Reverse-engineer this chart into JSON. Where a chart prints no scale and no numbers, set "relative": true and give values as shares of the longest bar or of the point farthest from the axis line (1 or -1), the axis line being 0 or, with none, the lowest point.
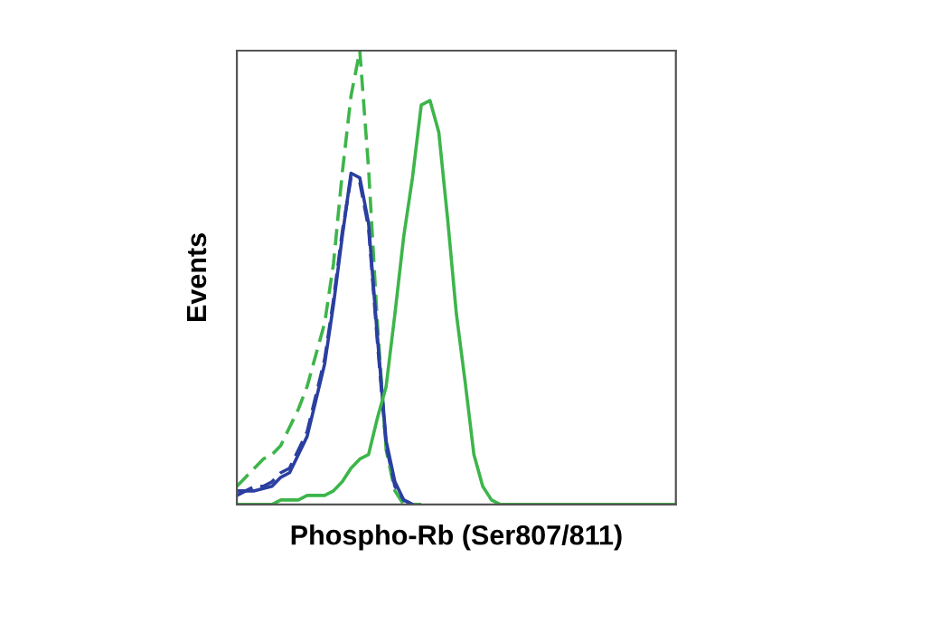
{
  "chart_data": {
    "type": "line",
    "relative": true,
    "xlabel": "Phospho-Rb (Ser807/811)",
    "ylabel": "Events",
    "tick_labels": false,
    "marker": "none",
    "categories": [
      null,
      null,
      null,
      null,
      null,
      null,
      null,
      null,
      null,
      null,
      null,
      null,
      null,
      null,
      null,
      null,
      null,
      null,
      null,
      null,
      null,
      null,
      null,
      null,
      null,
      null,
      null,
      null,
      null,
      null,
      null,
      null,
      null,
      null,
      null,
      null,
      null,
      null,
      null,
      null,
      null,
      null,
      null,
      null,
      null,
      null,
      null,
      null,
      null,
      null,
      null
    ],
    "series": [
      {
        "color": "#3db54a",
        "line_style": "dashed",
        "values": [
          0.04,
          0.06,
          0.08,
          0.1,
          0.11,
          0.13,
          0.17,
          0.21,
          0.26,
          0.33,
          0.4,
          0.53,
          0.73,
          0.9,
          1,
          0.74,
          0.4,
          0.12,
          0.03,
          0,
          0,
          0,
          null,
          null,
          null,
          null,
          null,
          null,
          null,
          null,
          null,
          null,
          null,
          null,
          null,
          null,
          null,
          null,
          null,
          null,
          null,
          null,
          null,
          null,
          null,
          null,
          null,
          null,
          null,
          null,
          null
        ]
      },
      {
        "color": "#2b3fa0",
        "line_style": "solid",
        "values": [
          0.02,
          0.03,
          0.03,
          0.035,
          0.04,
          0.06,
          0.07,
          0.11,
          0.15,
          0.23,
          0.31,
          0.44,
          0.59,
          0.73,
          0.72,
          0.62,
          0.37,
          0.14,
          0.05,
          0.01,
          0,
          null,
          null,
          null,
          null,
          null,
          null,
          null,
          null,
          null,
          null,
          null,
          null,
          null,
          null,
          null,
          null,
          null,
          null,
          null,
          null,
          null,
          null,
          null,
          null,
          null,
          null,
          null,
          null,
          null,
          null
        ]
      },
      {
        "color": "#2b3fa0",
        "line_style": "dashed",
        "values": [
          0.03,
          0.03,
          0.04,
          0.04,
          0.05,
          0.07,
          0.08,
          0.12,
          0.16,
          0.24,
          0.32,
          0.45,
          0.6,
          0.72,
          0.71,
          0.61,
          0.36,
          0.13,
          0.04,
          0.01,
          0,
          null,
          null,
          null,
          null,
          null,
          null,
          null,
          null,
          null,
          null,
          null,
          null,
          null,
          null,
          null,
          null,
          null,
          null,
          null,
          null,
          null,
          null,
          null,
          null,
          null,
          null,
          null,
          null,
          null,
          null
        ]
      },
      {
        "color": "#3db54a",
        "line_style": "solid",
        "values": [
          0,
          0,
          0,
          0,
          0,
          0.01,
          0.01,
          0.01,
          0.02,
          0.02,
          0.02,
          0.03,
          0.05,
          0.08,
          0.1,
          0.11,
          0.19,
          0.26,
          0.42,
          0.59,
          0.72,
          0.88,
          0.89,
          0.82,
          0.63,
          0.42,
          0.27,
          0.11,
          0.04,
          0.01,
          0,
          0,
          0,
          0,
          0,
          0,
          0,
          0,
          0,
          0,
          0,
          0,
          0,
          0,
          0,
          0,
          0,
          0,
          0,
          0,
          0
        ]
      }
    ]
  }
}
